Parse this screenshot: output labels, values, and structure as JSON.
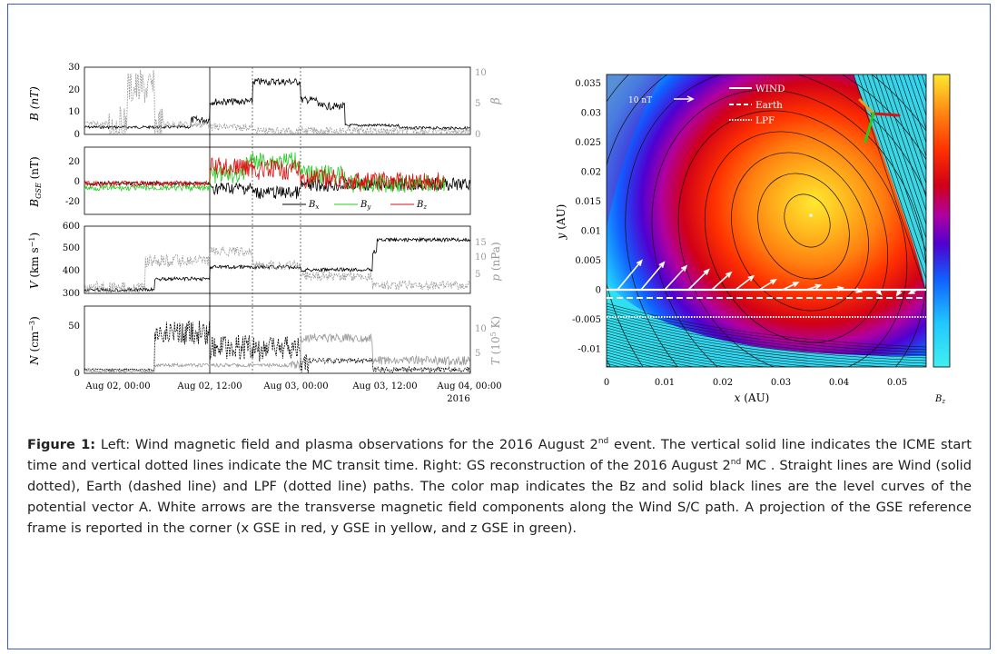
{
  "left_figure": {
    "panel1": {
      "ylabel": "B (nT)",
      "ylabel_right": "β",
      "yticks": [
        "0",
        "10",
        "20",
        "30"
      ],
      "yticks_right": [
        "0",
        "5",
        "10"
      ]
    },
    "panel2": {
      "ylabel": "B_GSE (nT)",
      "yticks": [
        "-20",
        "0",
        "20"
      ],
      "legend": [
        "B_x",
        "B_y",
        "B_z"
      ]
    },
    "panel3": {
      "ylabel": "V (km s⁻¹)",
      "ylabel_right": "p (nPa)",
      "yticks": [
        "300",
        "400",
        "500",
        "600"
      ],
      "yticks_right": [
        "5",
        "10",
        "15"
      ]
    },
    "panel4": {
      "ylabel": "N (cm⁻³)",
      "ylabel_right": "T (10⁵ K)",
      "yticks": [
        "0",
        "50"
      ],
      "yticks_right": [
        "5",
        "10"
      ]
    },
    "xticks": [
      "Aug 02, 00:00",
      "Aug 02, 12:00",
      "Aug 03, 00:00",
      "Aug 03, 12:00",
      "Aug 04, 00:00"
    ],
    "year": "2016"
  },
  "right_figure": {
    "xlabel": "x (AU)",
    "ylabel": "y (AU)",
    "xticks": [
      "0",
      "0.01",
      "0.02",
      "0.03",
      "0.04",
      "0.05"
    ],
    "yticks": [
      "0.035",
      "0.03",
      "0.025",
      "0.02",
      "0.015",
      "0.01",
      "0.005",
      "0",
      "-0.005",
      "-0.01"
    ],
    "arrow_scale": "10 nT",
    "legend": [
      "WIND",
      "Earth",
      "LPF"
    ],
    "colorbar_label": "B_z"
  },
  "caption": {
    "lead": "Figure 1:",
    "p1": " Left: Wind magnetic field and plasma observations for the 2016 August 2",
    "sup1": "nd",
    "p2": " event. The vertical solid line indicates the ICME start time and vertical dotted lines indicate the MC transit time. Right: GS reconstruction of the 2016 August 2",
    "sup2": "nd",
    "p3": " MC . Straight lines are Wind (solid dotted), Earth (dashed line) and LPF (dotted line) paths. The color map indicates the Bz and solid black lines are the level curves of the potential vector A. White arrows are the transverse magnetic field components along the Wind S/C path. A projection of the GSE reference frame is reported in the corner (x GSE in red, y GSE in yellow, and z GSE in green)."
  },
  "colors": {
    "frame": "#3d5fa3",
    "bx": "#000000",
    "by": "#22cc22",
    "bz": "#dd1111",
    "secondary": "#999999"
  }
}
